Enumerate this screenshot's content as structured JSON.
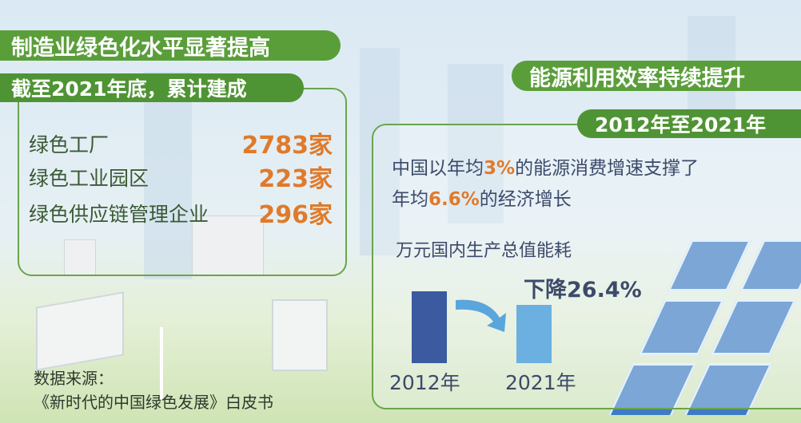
{
  "left": {
    "title": "制造业绿色化水平显著提高",
    "subtitle": "截至2021年底，累计建成",
    "items": [
      {
        "label": "绿色工厂",
        "value": "2783家"
      },
      {
        "label": "绿色工业园区",
        "value": "223家"
      },
      {
        "label": "绿色供应链管理企业",
        "value": "296家"
      }
    ]
  },
  "right": {
    "title": "能源利用效率持续提升",
    "subtitle": "2012年至2021年",
    "text_pre": "中国以年均",
    "text_hl1": "3%",
    "text_mid": "的能源消费增速支撑了",
    "text_line2_pre": "年均",
    "text_hl2": "6.6%",
    "text_post": "的经济增长",
    "chart_title": "万元国内生产总值能耗",
    "decline_label": "下降26.4%",
    "bars": [
      {
        "label": "2012年",
        "color": "#3b5aa0"
      },
      {
        "label": "2021年",
        "color": "#6bb0e0"
      }
    ]
  },
  "source": {
    "label": "数据来源：",
    "text": "《新时代的中国绿色发展》白皮书"
  },
  "colors": {
    "green": "#5a9e3a",
    "orange": "#e07a2a",
    "text": "#3c4a6a"
  }
}
